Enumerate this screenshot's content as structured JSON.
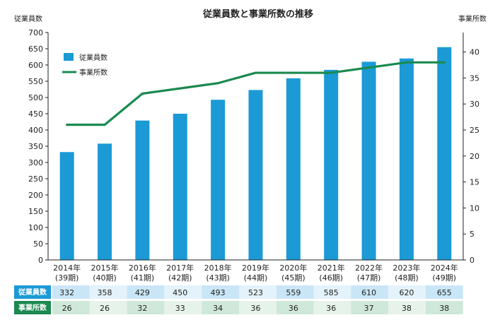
{
  "chart_data": {
    "type": "bar",
    "title": "従業員数と事業所数の推移",
    "categories": [
      {
        "year": "2014年",
        "period": "(39期)"
      },
      {
        "year": "2015年",
        "period": "(40期)"
      },
      {
        "year": "2016年",
        "period": "(41期)"
      },
      {
        "year": "2017年",
        "period": "(42期)"
      },
      {
        "year": "2018年",
        "period": "(43期)"
      },
      {
        "year": "2019年",
        "period": "(44期)"
      },
      {
        "year": "2020年",
        "period": "(45期)"
      },
      {
        "year": "2021年",
        "period": "(46期)"
      },
      {
        "year": "2022年",
        "period": "(47期)"
      },
      {
        "year": "2023年",
        "period": "(48期)"
      },
      {
        "year": "2024年",
        "period": "(49期)"
      }
    ],
    "series": [
      {
        "name": "従業員数",
        "type": "bar",
        "axis": "left",
        "color": "#1b9ad6",
        "values": [
          332,
          358,
          429,
          450,
          493,
          523,
          559,
          585,
          610,
          620,
          655
        ]
      },
      {
        "name": "事業所数",
        "type": "line",
        "axis": "right",
        "color": "#1a8a4f",
        "values": [
          26,
          26,
          32,
          33,
          34,
          36,
          36,
          36,
          37,
          38,
          38
        ]
      }
    ],
    "ylabel_left": "従業員数",
    "ylabel_right": "事業所数",
    "ylim_left": [
      0,
      700
    ],
    "yticks_left": [
      0,
      50,
      100,
      150,
      200,
      250,
      300,
      350,
      400,
      450,
      500,
      550,
      600,
      650,
      700
    ],
    "ylim_right": [
      0,
      43.75
    ],
    "yticks_right": [
      0,
      5,
      10,
      15,
      20,
      25,
      30,
      35,
      40
    ],
    "legend_position": "top-left",
    "grid": false,
    "table_rows": [
      {
        "label": "従業員数",
        "header_color": "#1b9ad6",
        "cell_colors": [
          "#c9e6f7",
          "#e3f2fb"
        ],
        "values": [
          "332",
          "358",
          "429",
          "450",
          "493",
          "523",
          "559",
          "585",
          "610",
          "620",
          "655"
        ]
      },
      {
        "label": "事業所数",
        "header_color": "#1a8a4f",
        "cell_colors": [
          "#cfe8d9",
          "#e6f3eb"
        ],
        "values": [
          "26",
          "26",
          "32",
          "33",
          "34",
          "36",
          "36",
          "36",
          "37",
          "38",
          "38"
        ]
      }
    ]
  }
}
